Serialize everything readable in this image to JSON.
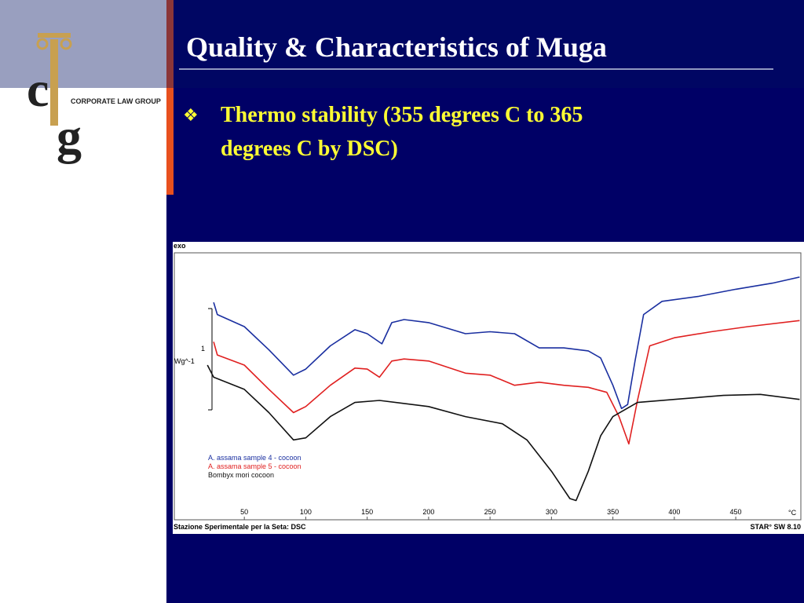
{
  "header": {
    "title": "Quality & Characteristics of Muga"
  },
  "bullets": [
    "Thermo stability (355 degrees C to 365",
    "degrees C by DSC)"
  ],
  "logo": {
    "initials": [
      "c",
      "g"
    ],
    "name": "CORPORATE LAW GROUP"
  },
  "chart_data": {
    "type": "line",
    "corner_label": "exo",
    "y_label": "Wg^-1",
    "scale_label": "1",
    "x_unit": "°C",
    "footer_left": "Stazione Sperimentale per la Seta: DSC",
    "footer_right": "STAR° SW 8.10",
    "xlim": [
      -7,
      503
    ],
    "ylim": [
      -0.17,
      2.47
    ],
    "xticks": [
      50,
      100,
      150,
      200,
      250,
      300,
      350,
      400,
      450
    ],
    "series": [
      {
        "name": "A. assama sample 4 - cocoon",
        "color": "#1a2fa0",
        "x": [
          25,
          28,
          50,
          70,
          90,
          100,
          120,
          140,
          150,
          162,
          170,
          180,
          200,
          230,
          250,
          270,
          290,
          310,
          330,
          340,
          350,
          357,
          362,
          368,
          375,
          390,
          420,
          450,
          480,
          502
        ],
        "values": [
          1.98,
          1.86,
          1.74,
          1.51,
          1.26,
          1.32,
          1.55,
          1.71,
          1.67,
          1.57,
          1.78,
          1.81,
          1.78,
          1.67,
          1.69,
          1.67,
          1.53,
          1.53,
          1.5,
          1.43,
          1.16,
          0.93,
          0.97,
          1.4,
          1.86,
          1.99,
          2.04,
          2.11,
          2.17,
          2.23
        ]
      },
      {
        "name": "A. assama sample 5 - cocoon",
        "color": "#e02020",
        "x": [
          25,
          28,
          50,
          70,
          90,
          100,
          120,
          140,
          150,
          160,
          170,
          180,
          200,
          230,
          250,
          270,
          290,
          310,
          330,
          345,
          355,
          363,
          370,
          380,
          400,
          430,
          460,
          502
        ],
        "values": [
          1.59,
          1.46,
          1.36,
          1.12,
          0.89,
          0.95,
          1.16,
          1.33,
          1.32,
          1.24,
          1.4,
          1.42,
          1.4,
          1.28,
          1.26,
          1.16,
          1.19,
          1.16,
          1.14,
          1.09,
          0.85,
          0.58,
          1.01,
          1.55,
          1.63,
          1.69,
          1.74,
          1.8
        ]
      },
      {
        "name": "Bombyx mori cocoon",
        "color": "#111111",
        "x": [
          20,
          25,
          50,
          70,
          90,
          100,
          120,
          140,
          160,
          200,
          230,
          260,
          280,
          300,
          315,
          320,
          330,
          340,
          350,
          370,
          400,
          440,
          470,
          502
        ],
        "values": [
          1.36,
          1.24,
          1.12,
          0.89,
          0.62,
          0.64,
          0.85,
          0.99,
          1.01,
          0.95,
          0.85,
          0.78,
          0.62,
          0.31,
          0.04,
          0.02,
          0.31,
          0.66,
          0.85,
          0.99,
          1.02,
          1.06,
          1.07,
          1.02
        ]
      }
    ]
  }
}
